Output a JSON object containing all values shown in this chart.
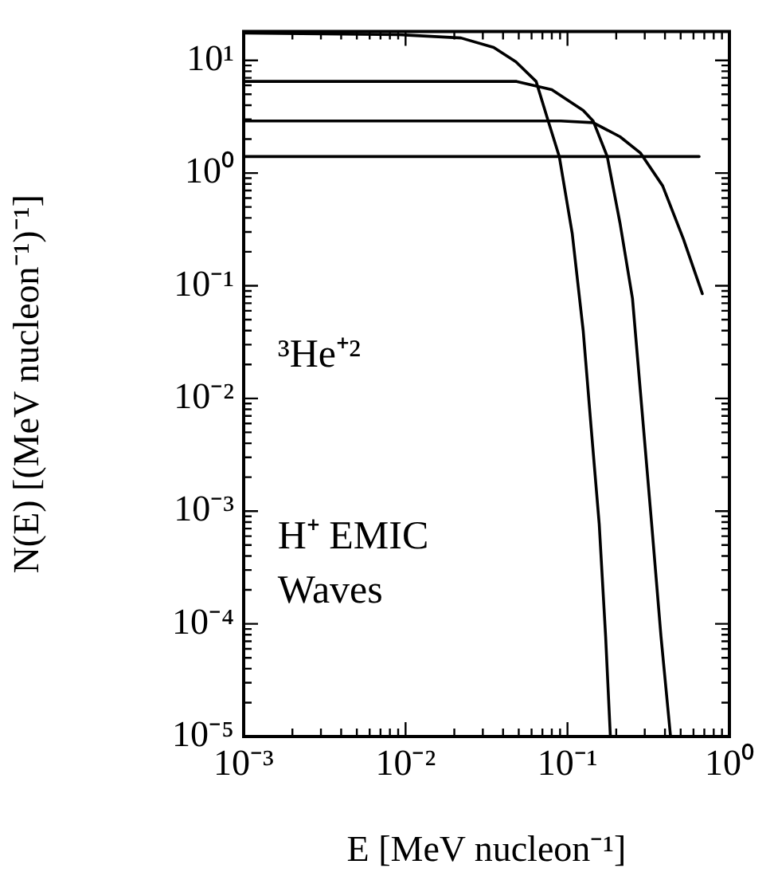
{
  "chart_data": {
    "type": "line",
    "xlabel": "E [MeV nucleon⁻¹]",
    "ylabel": "N(E) [(MeV nucleon⁻¹)⁻¹]",
    "annotations": [
      "³He⁺²",
      "H⁺ EMIC Waves"
    ],
    "log": "xy",
    "grid": false,
    "legend": false,
    "marker": "none",
    "line_style": "solid",
    "xlim": [
      0.001,
      1
    ],
    "ylim": [
      1e-05,
      18
    ],
    "xticks": [
      {
        "value": 0.001,
        "label": "10⁻³"
      },
      {
        "value": 0.002,
        "label": null
      },
      {
        "value": 0.003,
        "label": null
      },
      {
        "value": 0.004,
        "label": null
      },
      {
        "value": 0.005,
        "label": null
      },
      {
        "value": 0.006,
        "label": null
      },
      {
        "value": 0.007,
        "label": null
      },
      {
        "value": 0.008,
        "label": null
      },
      {
        "value": 0.009,
        "label": null
      },
      {
        "value": 0.01,
        "label": "10⁻²"
      },
      {
        "value": 0.02,
        "label": null
      },
      {
        "value": 0.03,
        "label": null
      },
      {
        "value": 0.04,
        "label": null
      },
      {
        "value": 0.05,
        "label": null
      },
      {
        "value": 0.06,
        "label": null
      },
      {
        "value": 0.07,
        "label": null
      },
      {
        "value": 0.08,
        "label": null
      },
      {
        "value": 0.09,
        "label": null
      },
      {
        "value": 0.1,
        "label": "10⁻¹"
      },
      {
        "value": 0.2,
        "label": null
      },
      {
        "value": 0.3,
        "label": null
      },
      {
        "value": 0.4,
        "label": null
      },
      {
        "value": 0.5,
        "label": null
      },
      {
        "value": 0.6,
        "label": null
      },
      {
        "value": 0.7,
        "label": null
      },
      {
        "value": 0.8,
        "label": null
      },
      {
        "value": 0.9,
        "label": null
      },
      {
        "value": 1,
        "label": "10⁰"
      }
    ],
    "yticks": [
      {
        "value": 1e-05,
        "label": "10⁻⁵"
      },
      {
        "value": 2e-05,
        "label": null
      },
      {
        "value": 3e-05,
        "label": null
      },
      {
        "value": 4e-05,
        "label": null
      },
      {
        "value": 5e-05,
        "label": null
      },
      {
        "value": 6e-05,
        "label": null
      },
      {
        "value": 7e-05,
        "label": null
      },
      {
        "value": 8e-05,
        "label": null
      },
      {
        "value": 9e-05,
        "label": null
      },
      {
        "value": 0.0001,
        "label": "10⁻⁴"
      },
      {
        "value": 0.0002,
        "label": null
      },
      {
        "value": 0.0003,
        "label": null
      },
      {
        "value": 0.0004,
        "label": null
      },
      {
        "value": 0.0005,
        "label": null
      },
      {
        "value": 0.0006,
        "label": null
      },
      {
        "value": 0.0007,
        "label": null
      },
      {
        "value": 0.0008,
        "label": null
      },
      {
        "value": 0.0009,
        "label": null
      },
      {
        "value": 0.001,
        "label": "10⁻³"
      },
      {
        "value": 0.002,
        "label": null
      },
      {
        "value": 0.003,
        "label": null
      },
      {
        "value": 0.004,
        "label": null
      },
      {
        "value": 0.005,
        "label": null
      },
      {
        "value": 0.006,
        "label": null
      },
      {
        "value": 0.007,
        "label": null
      },
      {
        "value": 0.008,
        "label": null
      },
      {
        "value": 0.009,
        "label": null
      },
      {
        "value": 0.01,
        "label": "10⁻²"
      },
      {
        "value": 0.02,
        "label": null
      },
      {
        "value": 0.03,
        "label": null
      },
      {
        "value": 0.04,
        "label": null
      },
      {
        "value": 0.05,
        "label": null
      },
      {
        "value": 0.06,
        "label": null
      },
      {
        "value": 0.07,
        "label": null
      },
      {
        "value": 0.08,
        "label": null
      },
      {
        "value": 0.09,
        "label": null
      },
      {
        "value": 0.1,
        "label": "10⁻¹"
      },
      {
        "value": 0.2,
        "label": null
      },
      {
        "value": 0.3,
        "label": null
      },
      {
        "value": 0.4,
        "label": null
      },
      {
        "value": 0.5,
        "label": null
      },
      {
        "value": 0.6,
        "label": null
      },
      {
        "value": 0.7,
        "label": null
      },
      {
        "value": 0.8,
        "label": null
      },
      {
        "value": 0.9,
        "label": null
      },
      {
        "value": 1,
        "label": "10⁰"
      },
      {
        "value": 2,
        "label": null
      },
      {
        "value": 3,
        "label": null
      },
      {
        "value": 4,
        "label": null
      },
      {
        "value": 5,
        "label": null
      },
      {
        "value": 6,
        "label": null
      },
      {
        "value": 7,
        "label": null
      },
      {
        "value": 8,
        "label": null
      },
      {
        "value": 9,
        "label": null
      },
      {
        "value": 10,
        "label": "10¹"
      }
    ],
    "series": [
      {
        "color": "#000000",
        "x": [
          0.001,
          0.009,
          0.022,
          0.035,
          0.048,
          0.064,
          0.076,
          0.089,
          0.107,
          0.125,
          0.14,
          0.157,
          0.172,
          0.184
        ],
        "values": [
          17.5,
          16.9,
          15.8,
          13,
          9.7,
          6.5,
          2.9,
          1.4,
          0.29,
          0.04,
          0.0055,
          0.00077,
          7.7e-05,
          1e-05
        ]
      },
      {
        "color": "#000000",
        "x": [
          0.001,
          0.01,
          0.0485,
          0.08,
          0.125,
          0.144,
          0.176,
          0.211,
          0.252,
          0.331,
          0.378,
          0.433
        ],
        "values": [
          6.5,
          6.5,
          6.5,
          5.5,
          3.6,
          2.9,
          1.4,
          0.36,
          0.077,
          0.00077,
          7.7e-05,
          1e-05
        ]
      },
      {
        "color": "#000000",
        "x": [
          0.001,
          0.01,
          0.091,
          0.144,
          0.211,
          0.283,
          0.387,
          0.52,
          0.68
        ],
        "values": [
          2.9,
          2.9,
          2.9,
          2.8,
          2.1,
          1.5,
          0.77,
          0.26,
          0.085
        ]
      },
      {
        "color": "#000000",
        "x": [
          0.001,
          0.65
        ],
        "values": [
          1.4,
          1.4
        ]
      }
    ]
  }
}
